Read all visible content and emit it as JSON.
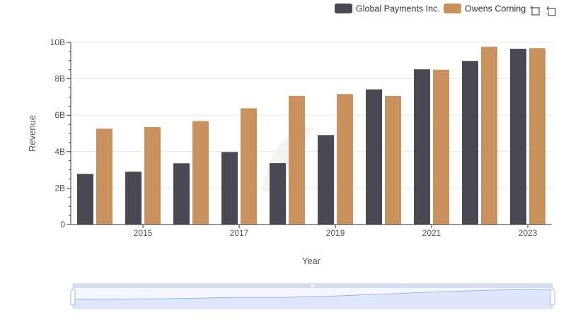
{
  "colors": {
    "series_0": "#4a4953",
    "series_1": "#c8915e",
    "grid": "#e6e6e6",
    "axis": "#333333",
    "zoom_fill": "#dbe6fa",
    "zoom_border": "#c7d3ea",
    "zoom_line": "#8fa8d9"
  },
  "toolbar": {
    "icons": [
      "zoom-select-icon",
      "zoom-reset-icon"
    ]
  },
  "chart_data": {
    "type": "bar",
    "x": [
      2014,
      2015,
      2016,
      2017,
      2018,
      2019,
      2020,
      2021,
      2022,
      2023
    ],
    "series": [
      {
        "name": "Global Payments Inc.",
        "values": [
          2.78,
          2.9,
          3.36,
          3.98,
          3.37,
          4.91,
          7.42,
          8.52,
          8.98,
          9.65
        ]
      },
      {
        "name": "Owens Corning",
        "values": [
          5.26,
          5.35,
          5.68,
          6.38,
          7.06,
          7.16,
          7.06,
          8.5,
          9.76,
          9.68
        ]
      }
    ],
    "xlabel": "Year",
    "ylabel": "Revenue",
    "ylim": [
      0,
      10
    ],
    "y_ticks": [
      "0",
      "2B",
      "4B",
      "6B",
      "8B",
      "10B"
    ],
    "x_ticks": [
      "2015",
      "2017",
      "2019",
      "2021",
      "2023"
    ],
    "grid": true,
    "legend_position": "top-right",
    "data_zoom": true
  }
}
